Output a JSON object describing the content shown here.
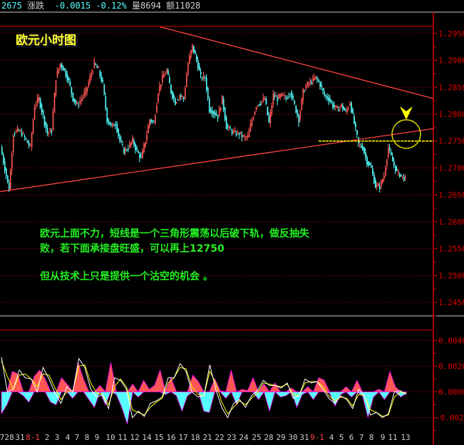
{
  "header": {
    "code": "2675",
    "change_label": "涨跌",
    "change_value": "-0.0015",
    "change_pct": "-0.12%",
    "volume_label": "量8694",
    "amount_label": "额11028"
  },
  "annotations": {
    "title": "欧元小时图",
    "note_line1": "欧元上面不力，短线是一个三角形震荡以后破下轨，做反抽失",
    "note_line2": "败，若下面承接盘旺盛，可以再上12750",
    "note_line3": "但从技术上只是提供一个沽空的机会 。"
  },
  "colors": {
    "up": "#ff5555",
    "down": "#55ffff",
    "axis": "#dd0000",
    "trendline": "#ff4444",
    "support": "#ffff00",
    "dif": "#ffffff",
    "dea": "#ffff00"
  },
  "chart_data": [
    {
      "type": "candlestick",
      "title": "欧元小时图",
      "ylim": [
        1.2425,
        1.2963
      ],
      "grid": true,
      "yticks": [
        "1.2950",
        "1.2900",
        "1.2850",
        "1.2800",
        "1.2750",
        "1.2700",
        "1.2650",
        "1.2600",
        "1.2550",
        "1.2500",
        "1.2450"
      ],
      "xticks": [
        {
          "label": "7",
          "highlight": false
        },
        {
          "label": "28",
          "highlight": false
        },
        {
          "label": "31",
          "highlight": false
        },
        {
          "label": "8-1",
          "highlight": true
        },
        {
          "label": "2",
          "highlight": false
        },
        {
          "label": "3",
          "highlight": false
        },
        {
          "label": "4",
          "highlight": false
        },
        {
          "label": "7",
          "highlight": false
        },
        {
          "label": "8",
          "highlight": false
        },
        {
          "label": "9",
          "highlight": false
        },
        {
          "label": "10",
          "highlight": false
        },
        {
          "label": "11",
          "highlight": false
        },
        {
          "label": "12",
          "highlight": false
        },
        {
          "label": "14",
          "highlight": false
        },
        {
          "label": "15",
          "highlight": false
        },
        {
          "label": "16",
          "highlight": false
        },
        {
          "label": "17",
          "highlight": false
        },
        {
          "label": "18",
          "highlight": false
        },
        {
          "label": "21",
          "highlight": false
        },
        {
          "label": "22",
          "highlight": false
        },
        {
          "label": "23",
          "highlight": false
        },
        {
          "label": "24",
          "highlight": false
        },
        {
          "label": "25",
          "highlight": false
        },
        {
          "label": "28",
          "highlight": false
        },
        {
          "label": "29",
          "highlight": false
        },
        {
          "label": "30",
          "highlight": false
        },
        {
          "label": "31",
          "highlight": false
        },
        {
          "label": "9-1",
          "highlight": true
        },
        {
          "label": "4",
          "highlight": false
        },
        {
          "label": "5",
          "highlight": false
        },
        {
          "label": "6",
          "highlight": false
        },
        {
          "label": "7",
          "highlight": false
        },
        {
          "label": "8",
          "highlight": false
        },
        {
          "label": "9",
          "highlight": false
        },
        {
          "label": "11",
          "highlight": false
        },
        {
          "label": "13",
          "highlight": false
        }
      ],
      "closes": [
        1.2738,
        1.2699,
        1.266,
        1.2764,
        1.277,
        1.2764,
        1.2751,
        1.2738,
        1.2816,
        1.2829,
        1.2796,
        1.2764,
        1.277,
        1.2868,
        1.2894,
        1.2881,
        1.2861,
        1.2829,
        1.2816,
        1.2829,
        1.2842,
        1.2868,
        1.2894,
        1.2881,
        1.2855,
        1.279,
        1.2777,
        1.2783,
        1.2751,
        1.2731,
        1.2738,
        1.2751,
        1.2731,
        1.2718,
        1.2751,
        1.279,
        1.2783,
        1.2842,
        1.2868,
        1.2881,
        1.2842,
        1.2822,
        1.2835,
        1.2829,
        1.2894,
        1.2927,
        1.29,
        1.2868,
        1.2868,
        1.2809,
        1.2803,
        1.2796,
        1.2829,
        1.2777,
        1.277,
        1.2764,
        1.2764,
        1.2757,
        1.2757,
        1.279,
        1.2816,
        1.2822,
        1.2829,
        1.2783,
        1.2835,
        1.2829,
        1.2835,
        1.2829,
        1.2842,
        1.2816,
        1.279,
        1.2842,
        1.2855,
        1.2861,
        1.2868,
        1.2855,
        1.2835,
        1.2829,
        1.2816,
        1.2809,
        1.2816,
        1.2803,
        1.2822,
        1.2783,
        1.2744,
        1.2738,
        1.2712,
        1.2699,
        1.2666,
        1.2666,
        1.2686,
        1.2738,
        1.2712,
        1.2692,
        1.2686,
        1.2679
      ],
      "trendlines": [
        {
          "name": "upper",
          "from": 1.2962,
          "to": 1.2829
        },
        {
          "name": "lower",
          "from": 1.2656,
          "to": 1.2773
        }
      ],
      "support_level": 1.275
    },
    {
      "type": "macd",
      "ylim": [
        -0.0028,
        0.0048
      ],
      "yticks": [
        "0.0040",
        "0.0020",
        "0.0000",
        "-0.0020"
      ],
      "histogram": [
        -0.0017,
        -0.001,
        0.0016,
        0.0014,
        -0.0003,
        -0.0008,
        0.0012,
        0.0017,
        0.001,
        -0.0008,
        -0.001,
        0.0011,
        0.0006,
        -0.0005,
        0.0023,
        0.001,
        -0.0006,
        -0.0012,
        0.0005,
        -0.001,
        0.0023,
        -0.0002,
        -0.0012,
        -0.0025,
        0.0006,
        -0.0004,
        0.0009,
        0.0002,
        0.0005,
        0.0017,
        -0.0002,
        0.0011,
        -0.0003,
        -0.0015,
        -0.0003,
        0.0013,
        0.0008,
        -0.0015,
        -0.0016,
        0.001,
        0.0001,
        -0.0005,
        0.0017,
        -0.001,
        0.0002,
        0.0001,
        0.0011,
        -0.0006,
        0.0006,
        -0.0015,
        0.0007,
        -0.0004,
        -0.0003,
        0.0003,
        -0.0012,
        -0.0002,
        0.0004,
        -0.0006,
        0.0011,
        0.0009,
        -0.0001,
        -0.0011,
        -0.0002,
        0.0004,
        -0.0004,
        0.0009,
        -0.0003,
        -0.002,
        -0.0004,
        0.0002,
        -0.0006,
        0.0016,
        0.0004,
        -0.0004,
        -0.0001
      ],
      "dif": [
        0.0027,
        0.0,
        0.0002,
        0.0017,
        0.0011,
        0.001,
        0.0,
        0.0019,
        0.001,
        -0.0001,
        -0.0009,
        0.0004,
        0.0,
        0.0026,
        0.0019,
        0.0002,
        -0.0004,
        -0.0002,
        -0.0013,
        0.0011,
        0.0009,
        0.0002,
        -0.002,
        -0.0015,
        -0.0019,
        -0.0009,
        -0.0007,
        -0.0004,
        0.0011,
        0.0011,
        0.0022,
        0.0016,
        0.0,
        -0.0004,
        -0.0003,
        0.0021,
        0.0002,
        -0.0012,
        -0.002,
        -0.0009,
        -0.0006,
        -0.0012,
        -0.0003,
        0.0001,
        0.0009,
        0.0005,
        0.0005,
        0.0003,
        0.0007,
        -0.0005,
        -0.0003,
        0.001,
        0.0007,
        0.0008,
        0.0002,
        -0.0005,
        -0.0009,
        -0.0003,
        -0.0006,
        -0.0013,
        0.0002,
        -0.0003,
        -0.0018,
        -0.0016,
        -0.002,
        -0.0017,
        0.0,
        0.0001,
        -0.0002
      ],
      "dea": [
        0.0024,
        0.0012,
        0.0002,
        0.0013,
        0.0014,
        0.001,
        0.0004,
        0.0014,
        0.0013,
        0.0003,
        -0.0006,
        0.0,
        0.0001,
        0.002,
        0.0021,
        0.0007,
        -0.0001,
        -0.0002,
        -0.001,
        0.0004,
        0.001,
        0.0004,
        -0.0014,
        -0.0016,
        -0.0018,
        -0.0012,
        -0.0008,
        -0.0005,
        0.0007,
        0.0011,
        0.0019,
        0.0018,
        0.0004,
        -0.0002,
        -0.0003,
        0.0016,
        0.0007,
        -0.0008,
        -0.0017,
        -0.0012,
        -0.0007,
        -0.001,
        -0.0005,
        -0.0001,
        0.0007,
        0.0006,
        0.0005,
        0.0004,
        0.0006,
        -0.0002,
        -0.0003,
        0.0007,
        0.0008,
        0.0008,
        0.0004,
        -0.0003,
        -0.0007,
        -0.0004,
        -0.0005,
        -0.0011,
        -0.0002,
        -0.0003,
        -0.0014,
        -0.0016,
        -0.0019,
        -0.0018,
        -0.0004,
        0.0,
        -0.0001
      ]
    }
  ]
}
